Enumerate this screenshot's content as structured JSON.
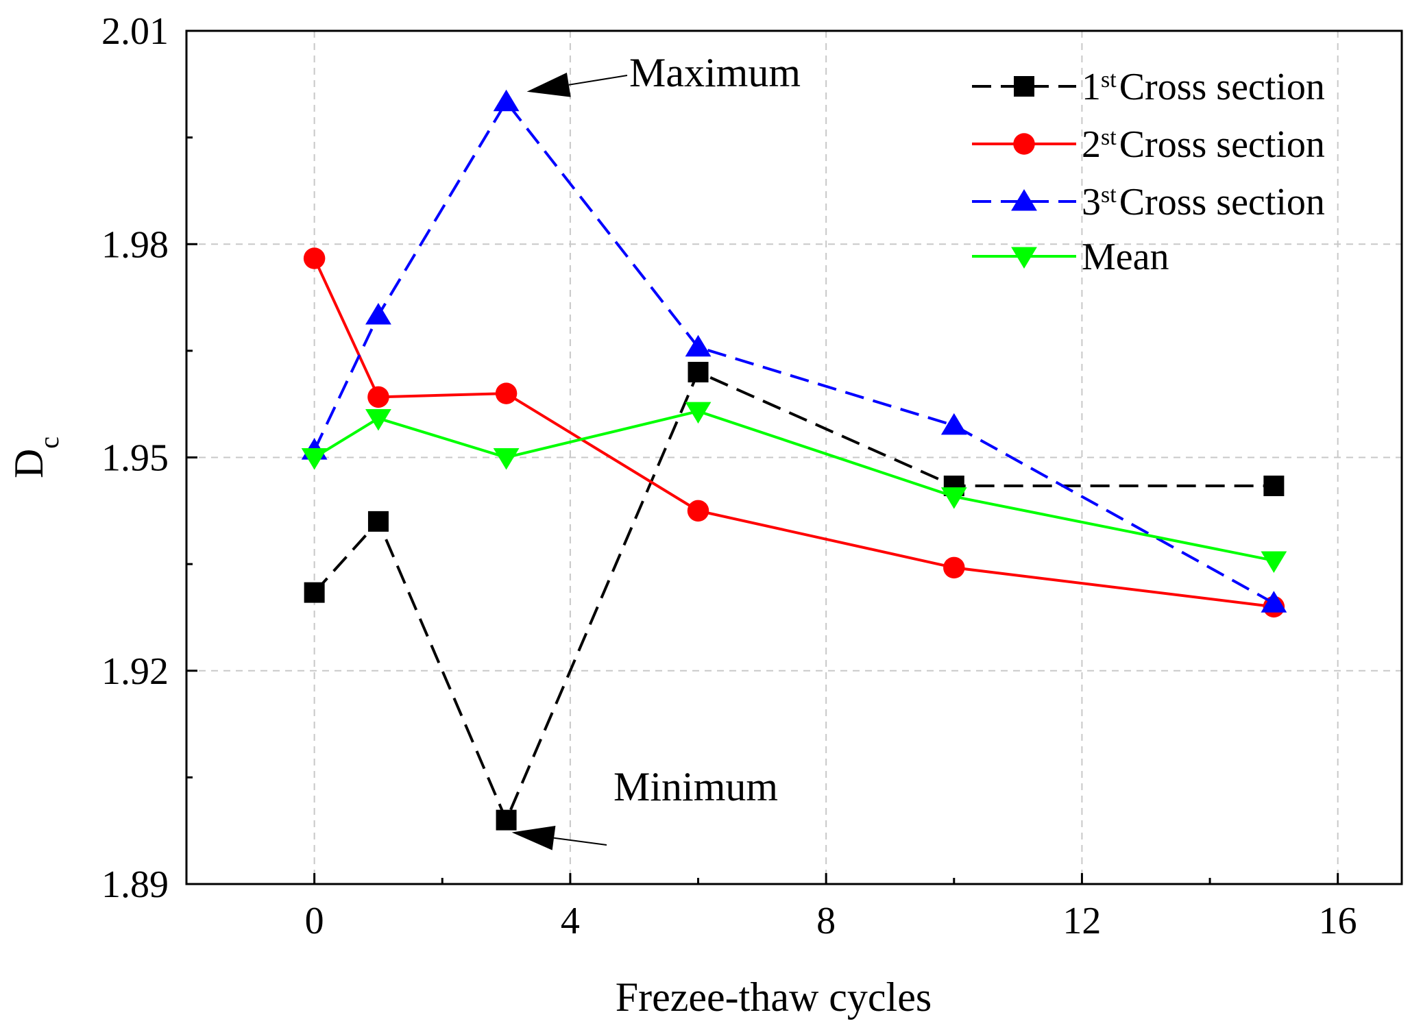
{
  "chart_data": {
    "type": "line",
    "xlabel": "Frezee-thaw cycles",
    "ylabel_main": "D",
    "ylabel_sub": "c",
    "xlim": [
      -2,
      17
    ],
    "ylim": [
      1.89,
      2.01
    ],
    "xticks": [
      0,
      4,
      8,
      12,
      16
    ],
    "yticks": [
      1.89,
      1.92,
      1.95,
      1.98,
      2.01
    ],
    "xtick_labels": [
      "0",
      "4",
      "8",
      "12",
      "16"
    ],
    "ytick_labels": [
      "1.89",
      "1.92",
      "1.95",
      "1.98",
      "2.01"
    ],
    "x_minor_ticks": [
      2,
      6,
      10,
      14
    ],
    "y_minor_ticks": [
      1.905,
      1.935,
      1.965,
      1.995
    ],
    "grid": true,
    "legend_position": "top-right",
    "x": [
      0,
      1,
      3,
      6,
      10,
      15
    ],
    "series": [
      {
        "name_num": "1",
        "name_sup": "st",
        "name_rest": "Cross section",
        "color": "#000000",
        "dash": "dashed",
        "marker": "square",
        "values": [
          1.931,
          1.941,
          1.899,
          1.962,
          1.946,
          1.946
        ]
      },
      {
        "name_num": "2",
        "name_sup": "st",
        "name_rest": "Cross section",
        "color": "#ff0000",
        "dash": "solid",
        "marker": "circle",
        "values": [
          1.978,
          1.9585,
          1.959,
          1.9425,
          1.9345,
          1.929
        ]
      },
      {
        "name_num": "3",
        "name_sup": "st",
        "name_rest": "Cross section",
        "color": "#0000ff",
        "dash": "dashed",
        "marker": "triangle-up",
        "values": [
          1.951,
          1.97,
          2.0,
          1.9655,
          1.9545,
          1.9295
        ]
      },
      {
        "name_num": "",
        "name_sup": "",
        "name_rest": "Mean",
        "color": "#00ff00",
        "dash": "solid",
        "marker": "triangle-down",
        "values": [
          1.95,
          1.9555,
          1.95,
          1.9565,
          1.9445,
          1.9355
        ]
      }
    ],
    "annotations": [
      {
        "text": "Maximum",
        "target_x": 3,
        "target_y": 2.0
      },
      {
        "text": "Minimum",
        "target_x": 3,
        "target_y": 1.899
      }
    ]
  }
}
